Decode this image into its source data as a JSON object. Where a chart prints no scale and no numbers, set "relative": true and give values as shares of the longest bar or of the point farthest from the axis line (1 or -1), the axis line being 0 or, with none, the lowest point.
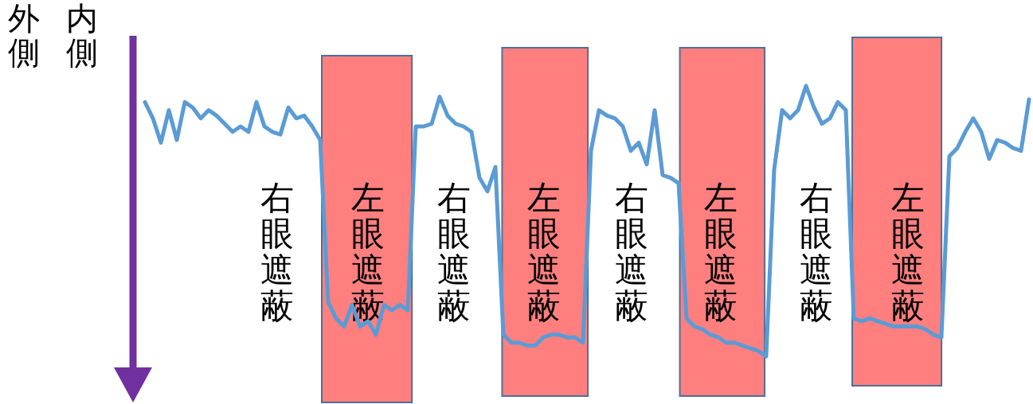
{
  "chart_data": {
    "type": "line",
    "relative": true,
    "marker": "none",
    "line_style": "solid",
    "annotations": [
      "内側",
      "外側",
      "右眼遮蔽",
      "左眼遮蔽",
      "右眼遮蔽",
      "左眼遮蔽",
      "右眼遮蔽",
      "左眼遮蔽",
      "右眼遮蔽",
      "左眼遮蔽"
    ],
    "categories": [
      null,
      null,
      null,
      null,
      null,
      null,
      null,
      null,
      null,
      null,
      null,
      null,
      null,
      null,
      null,
      null,
      null,
      null,
      null,
      null,
      null,
      null,
      null,
      null,
      null,
      null,
      null,
      null,
      null,
      null,
      null,
      null,
      null,
      null,
      null,
      null,
      null,
      null,
      null,
      null,
      null,
      null,
      null,
      null,
      null,
      null,
      null,
      null,
      null,
      null,
      null,
      null,
      null,
      null,
      null,
      null,
      null,
      null,
      null,
      null,
      null,
      null,
      null,
      null,
      null,
      null,
      null,
      null,
      null,
      null,
      null,
      null,
      null,
      null,
      null,
      null,
      null,
      null,
      null,
      null,
      null,
      null,
      null,
      null,
      null,
      null,
      null,
      null,
      null,
      null,
      null,
      null,
      null,
      null,
      null,
      null,
      null,
      null,
      null,
      null,
      null,
      null,
      null,
      null,
      null,
      null,
      null,
      null,
      null,
      null,
      null,
      null
    ],
    "series": [
      {
        "color": "#5b9bd5",
        "values": [
          0.94,
          0.88,
          0.79,
          0.91,
          0.8,
          0.94,
          0.92,
          0.88,
          0.91,
          0.89,
          0.86,
          0.83,
          0.85,
          0.83,
          0.94,
          0.85,
          0.83,
          0.82,
          0.92,
          0.88,
          0.89,
          0.85,
          0.8,
          0.2,
          0.14,
          0.11,
          0.19,
          0.11,
          0.13,
          0.08,
          0.19,
          0.17,
          0.19,
          0.17,
          0.85,
          0.85,
          0.86,
          0.96,
          0.89,
          0.86,
          0.85,
          0.83,
          0.66,
          0.61,
          0.7,
          0.08,
          0.05,
          0.05,
          0.04,
          0.04,
          0.07,
          0.08,
          0.08,
          0.07,
          0.07,
          0.05,
          0.76,
          0.91,
          0.89,
          0.88,
          0.85,
          0.76,
          0.79,
          0.71,
          0.91,
          0.67,
          0.66,
          0.64,
          0.14,
          0.11,
          0.1,
          0.08,
          0.07,
          0.05,
          0.05,
          0.04,
          0.03,
          0.02,
          0,
          0.69,
          0.91,
          0.88,
          0.91,
          1,
          0.92,
          0.86,
          0.88,
          0.94,
          0.91,
          0.14,
          0.13,
          0.14,
          0.13,
          0.12,
          0.11,
          0.11,
          0.11,
          0.11,
          0.1,
          0.08,
          0.07,
          0.74,
          0.77,
          0.83,
          0.88,
          0.83,
          0.73,
          0.8,
          0.79,
          0.77,
          0.76,
          0.95
        ]
      }
    ]
  }
}
